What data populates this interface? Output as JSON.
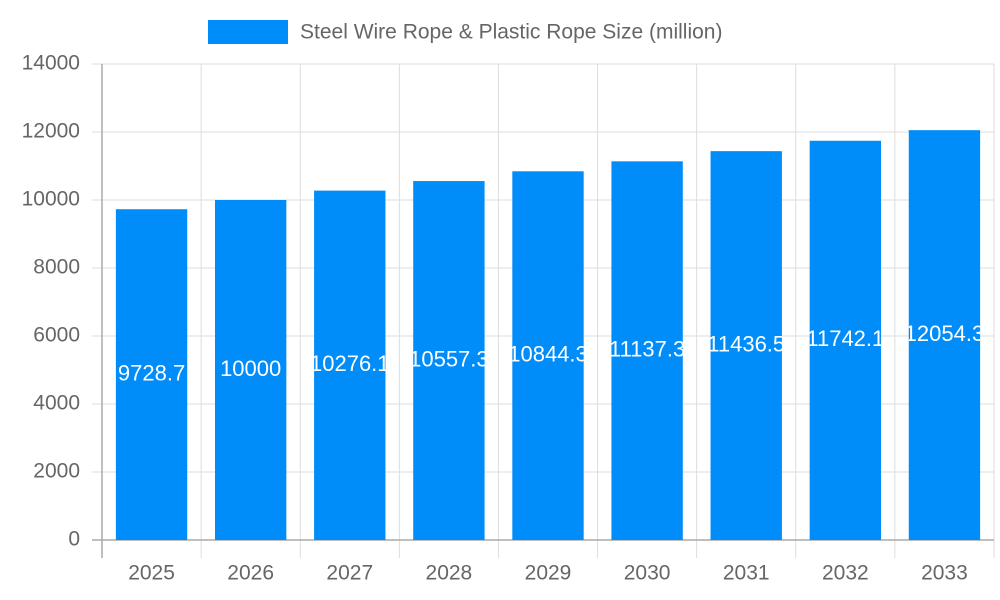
{
  "chart_data": {
    "type": "bar",
    "series": [
      {
        "name": "Steel Wire Rope & Plastic Rope Size (million)",
        "color": "#008cf9",
        "values": [
          9728.7,
          10000,
          10276.1,
          10557.3,
          10844.3,
          11137.3,
          11436.5,
          11742.1,
          12054.3
        ]
      }
    ],
    "categories": [
      "2025",
      "2026",
      "2027",
      "2028",
      "2029",
      "2030",
      "2031",
      "2032",
      "2033"
    ],
    "ylim": [
      0,
      14000
    ],
    "yticks": [
      0,
      2000,
      4000,
      6000,
      8000,
      10000,
      12000,
      14000
    ],
    "grid": true,
    "legend": "top"
  }
}
